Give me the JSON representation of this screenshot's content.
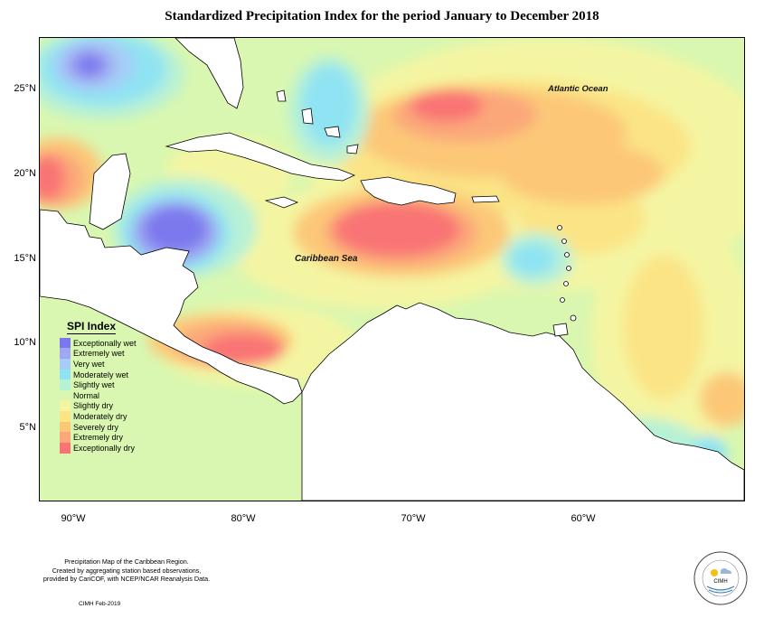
{
  "title": "Standardized Precipitation Index for the period January to December 2018",
  "place_labels": {
    "atlantic": "Atlantic Ocean",
    "caribbean": "Caribbean Sea"
  },
  "axes": {
    "lat_labels": [
      "25°N",
      "20°N",
      "15°N",
      "10°N",
      "5°N"
    ],
    "lon_labels": [
      "90°W",
      "80°W",
      "70°W",
      "60°W"
    ]
  },
  "legend": {
    "title": "SPI Index",
    "items": [
      {
        "label": "Exceptionally wet",
        "color": "#7b78ee"
      },
      {
        "label": "Extremely wet",
        "color": "#9fa6f2"
      },
      {
        "label": "Very wet",
        "color": "#a6cdf7"
      },
      {
        "label": "Moderately wet",
        "color": "#8fe3f3"
      },
      {
        "label": "Slightly wet",
        "color": "#b7f1d6"
      },
      {
        "label": "Normal",
        "color": "#d9f7b0"
      },
      {
        "label": "Slightly dry",
        "color": "#f4f5a2"
      },
      {
        "label": "Moderately dry",
        "color": "#fbe486"
      },
      {
        "label": "Severely dry",
        "color": "#fcc878"
      },
      {
        "label": "Extremely dry",
        "color": "#fba77a"
      },
      {
        "label": "Exceptionally dry",
        "color": "#f97474"
      }
    ]
  },
  "footnote": {
    "line1": "Precipitation Map of the Caribbean Region.",
    "line2": "Created by aggregating station based observations,",
    "line3": "provided by CariCOF, with NCEP/NCAR Reanalysis Data."
  },
  "credit": "CIMH Feb-2019",
  "logo": {
    "text": "CIMH"
  }
}
